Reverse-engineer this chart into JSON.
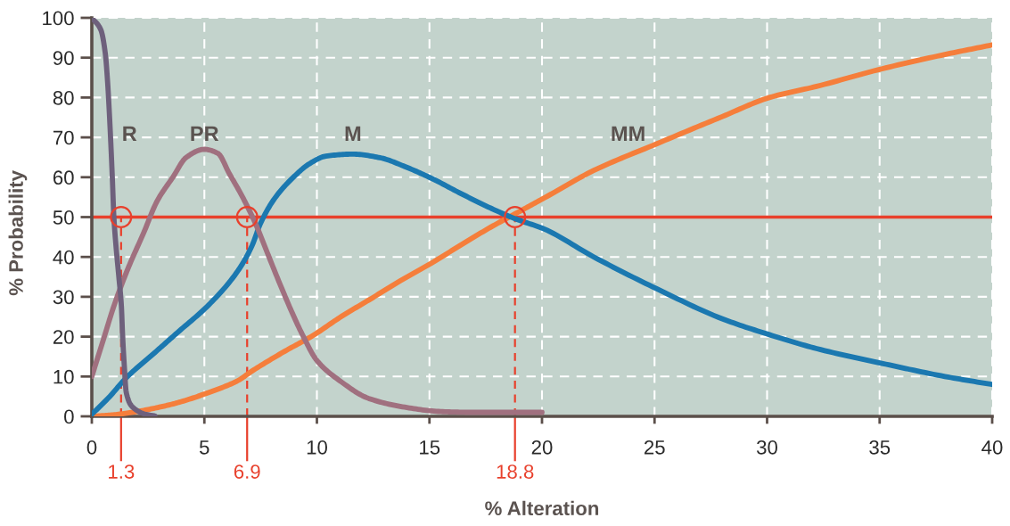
{
  "chart_data": {
    "type": "line",
    "xlabel": "% Alteration",
    "ylabel": "% Probability",
    "xlim": [
      0,
      40
    ],
    "ylim": [
      0,
      100
    ],
    "xticks": [
      0,
      5,
      10,
      15,
      20,
      25,
      30,
      35,
      40
    ],
    "yticks": [
      0,
      10,
      20,
      30,
      40,
      50,
      60,
      70,
      80,
      90,
      100
    ],
    "grid": true,
    "series": [
      {
        "name": "R",
        "color": "#6e607c",
        "x": [
          0,
          0.4,
          0.6,
          0.7,
          0.78,
          0.84,
          0.91,
          0.98,
          1.07,
          1.2,
          1.31,
          1.37,
          1.44,
          1.53,
          1.8,
          2.4,
          2.8
        ],
        "values": [
          100,
          97,
          91,
          84,
          76,
          69,
          60,
          50,
          43,
          35,
          28,
          20,
          13,
          6,
          2.4,
          0.5,
          0.1
        ]
      },
      {
        "name": "PR",
        "color": "#a0707f",
        "x": [
          0,
          0.5,
          1,
          1.6,
          2.3,
          2.9,
          3.6,
          4.2,
          5.0,
          5.6,
          6.1,
          6.7,
          7.3,
          7.8,
          8.3,
          8.9,
          9.4,
          10,
          11,
          12.3,
          13.9,
          15.5,
          17,
          20
        ],
        "values": [
          10,
          19,
          28,
          37,
          46,
          54,
          60,
          65,
          67,
          66,
          61,
          55,
          48,
          41,
          34,
          26,
          20,
          14,
          9,
          4.5,
          2.3,
          1.2,
          1,
          1
        ]
      },
      {
        "name": "M",
        "color": "#1b78b0",
        "x": [
          0,
          0.8,
          1.5,
          2.8,
          3.8,
          5.2,
          6.5,
          7.1,
          7.5,
          8.1,
          8.9,
          9.7,
          10.4,
          11.6,
          12.8,
          13.9,
          15.1,
          16.4,
          17.7,
          18.8,
          20.1,
          22.3,
          25.1,
          28,
          30.1,
          32.2,
          35.1,
          37.9,
          40
        ],
        "values": [
          0.5,
          5,
          9.5,
          16,
          21,
          28,
          36.6,
          42.6,
          48.5,
          54.5,
          59.7,
          63.5,
          65.3,
          65.8,
          64.9,
          62.7,
          59.7,
          55.9,
          52.3,
          49.6,
          47,
          40,
          32,
          24.5,
          20.5,
          17,
          13.3,
          10,
          8
        ]
      },
      {
        "name": "MM",
        "color": "#f57e3b",
        "x": [
          0,
          1,
          2,
          3,
          3.8,
          5.2,
          6.5,
          7.1,
          8.5,
          9.8,
          11.1,
          12.4,
          13.7,
          15.1,
          16.4,
          17.7,
          18.8,
          20.1,
          22.3,
          25.1,
          28,
          30.1,
          32.2,
          35.1,
          37.9,
          40
        ],
        "values": [
          0,
          0.4,
          1.2,
          2.3,
          3.4,
          6,
          9,
          11.3,
          16.1,
          20.2,
          25.1,
          29.5,
          34,
          38.5,
          43,
          47.4,
          50.8,
          54.8,
          61.7,
          68.4,
          75.2,
          80,
          82.8,
          87.2,
          90.8,
          93.2
        ]
      },
      {
        "type": "scatter",
        "marker": "circle",
        "color": "#e8402c",
        "x": [
          1.3,
          6.9,
          18.8
        ],
        "values": [
          50,
          50,
          50
        ]
      }
    ],
    "ref_lines": [
      {
        "axis": "y",
        "value": 50,
        "color": "#e8402c",
        "line_style": "solid"
      },
      {
        "axis": "x",
        "value": 1.3,
        "label": "1.3",
        "color": "#e8402c",
        "line_style": "dashed"
      },
      {
        "axis": "x",
        "value": 6.9,
        "label": "6.9",
        "color": "#e8402c",
        "line_style": "dashed"
      },
      {
        "axis": "x",
        "value": 18.8,
        "label": "18.8",
        "color": "#e8402c",
        "line_style": "dashed"
      }
    ]
  }
}
